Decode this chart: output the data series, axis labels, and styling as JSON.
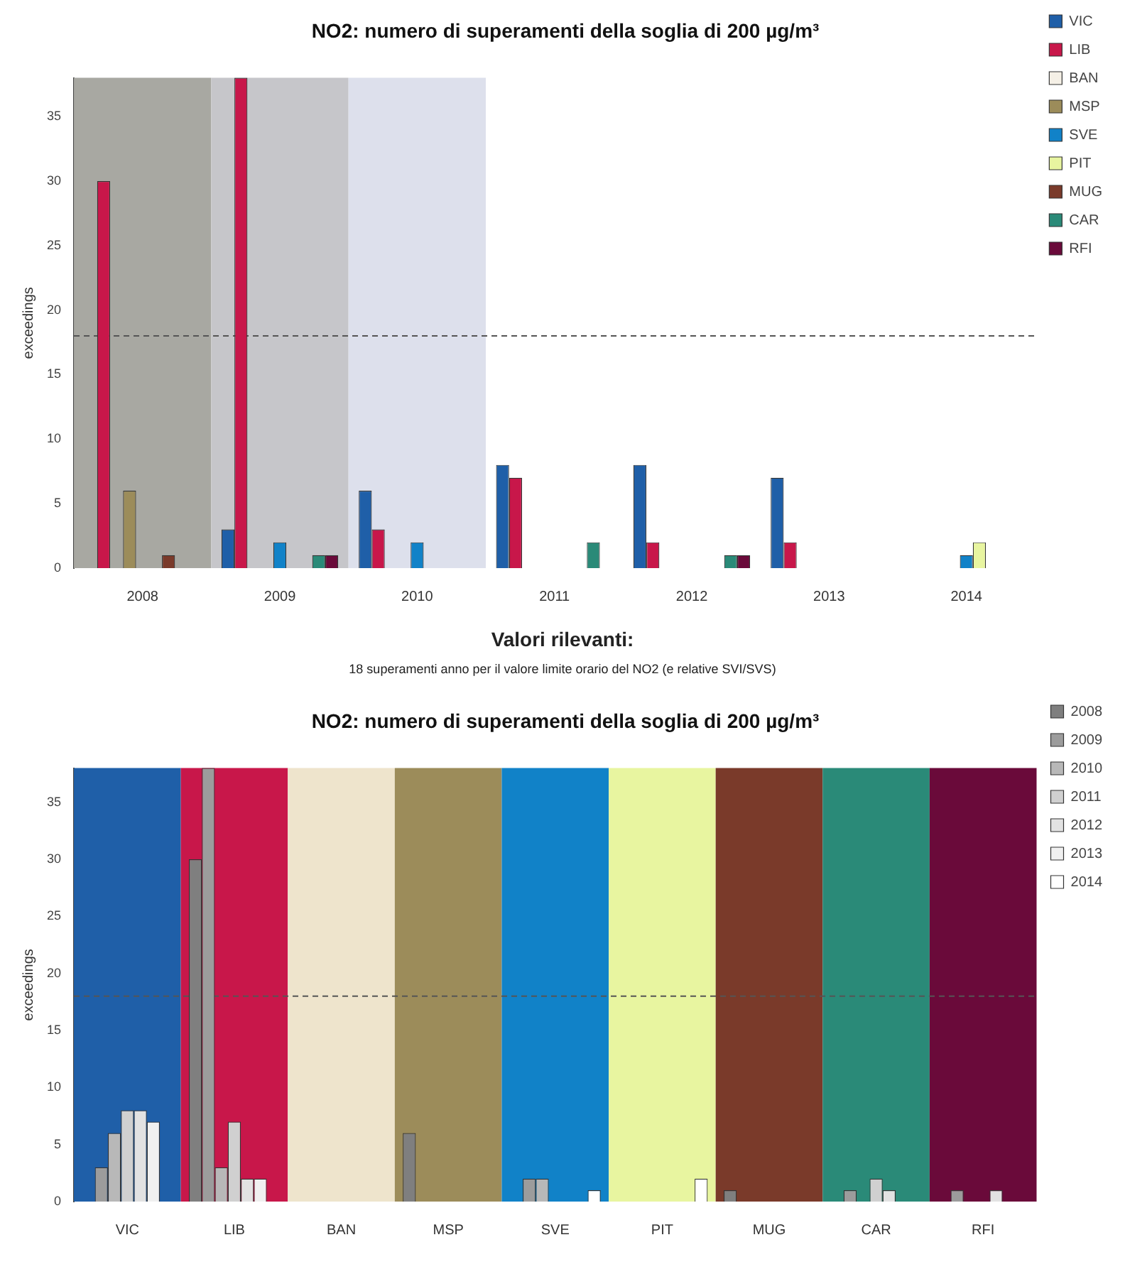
{
  "chart_data": [
    {
      "type": "bar",
      "title": "NO2: numero di superamenti della soglia di 200 µg/m³",
      "ylabel": "exceedings",
      "categories": [
        "2008",
        "2009",
        "2010",
        "2011",
        "2012",
        "2013",
        "2014"
      ],
      "series": [
        {
          "name": "VIC",
          "color": "#1f5fa8",
          "values": [
            0,
            3,
            6,
            8,
            8,
            7,
            null
          ]
        },
        {
          "name": "LIB",
          "color": "#c8174a",
          "values": [
            30,
            38,
            3,
            7,
            2,
            2,
            null
          ]
        },
        {
          "name": "BAN",
          "color": "#f5f0e6",
          "values": [
            0,
            0,
            0,
            0,
            0,
            0,
            0
          ]
        },
        {
          "name": "MSP",
          "color": "#9c8c5a",
          "values": [
            6,
            0,
            0,
            0,
            0,
            0,
            0
          ]
        },
        {
          "name": "SVE",
          "color": "#1182c8",
          "values": [
            0,
            2,
            2,
            0,
            0,
            0,
            1
          ]
        },
        {
          "name": "PIT",
          "color": "#e8f5a0",
          "values": [
            0,
            0,
            0,
            0,
            0,
            0,
            2
          ]
        },
        {
          "name": "MUG",
          "color": "#7a3a2a",
          "values": [
            1,
            0,
            0,
            0,
            0,
            0,
            0
          ]
        },
        {
          "name": "CAR",
          "color": "#2a8a78",
          "values": [
            0,
            1,
            0,
            2,
            1,
            0,
            0
          ]
        },
        {
          "name": "RFI",
          "color": "#6a0a3a",
          "values": [
            0,
            1,
            0,
            0,
            1,
            0,
            0
          ]
        }
      ],
      "ylim": [
        0,
        38
      ],
      "yticks": [
        0,
        5,
        10,
        15,
        20,
        25,
        30,
        35
      ],
      "legend": "top right",
      "ref_lines": [
        {
          "axis": "y",
          "value": 18,
          "color": "#555555",
          "line_style": "dashed"
        }
      ],
      "bands": [
        {
          "axis": "x",
          "from": "2008",
          "to": "2008",
          "color": "#a8a8a2"
        },
        {
          "axis": "x",
          "from": "2009",
          "to": "2009",
          "color": "#c6c6ca"
        },
        {
          "axis": "x",
          "from": "2010",
          "to": "2010",
          "color": "#dde0ec"
        }
      ],
      "annotations": [
        "Valori rilevanti:",
        "18 superamenti anno per il valore limite orario del NO2 (e relative SVI/SVS)"
      ]
    },
    {
      "type": "bar",
      "title": "NO2: numero di superamenti della soglia di 200 µg/m³",
      "ylabel": "exceedings",
      "categories": [
        "VIC",
        "LIB",
        "BAN",
        "MSP",
        "SVE",
        "PIT",
        "MUG",
        "CAR",
        "RFI"
      ],
      "series": [
        {
          "name": "2008",
          "color": "#7f7f7f",
          "values": [
            0,
            30,
            0,
            6,
            0,
            0,
            1,
            0,
            0
          ]
        },
        {
          "name": "2009",
          "color": "#9c9c9c",
          "values": [
            3,
            38,
            0,
            0,
            2,
            0,
            0,
            1,
            1
          ]
        },
        {
          "name": "2010",
          "color": "#b8b8b8",
          "values": [
            6,
            3,
            0,
            0,
            2,
            0,
            0,
            0,
            0
          ]
        },
        {
          "name": "2011",
          "color": "#d0d0d0",
          "values": [
            8,
            7,
            0,
            0,
            0,
            0,
            0,
            2,
            0
          ]
        },
        {
          "name": "2012",
          "color": "#e2e2e2",
          "values": [
            8,
            2,
            0,
            0,
            0,
            0,
            0,
            1,
            1
          ]
        },
        {
          "name": "2013",
          "color": "#f0f0f0",
          "values": [
            7,
            2,
            0,
            0,
            0,
            0,
            0,
            0,
            0
          ]
        },
        {
          "name": "2014",
          "color": "#ffffff",
          "values": [
            null,
            null,
            0,
            0,
            1,
            2,
            0,
            0,
            0
          ]
        }
      ],
      "ylim": [
        0,
        38
      ],
      "yticks": [
        0,
        5,
        10,
        15,
        20,
        25,
        30,
        35
      ],
      "legend": "top right",
      "ref_lines": [
        {
          "axis": "y",
          "value": 18,
          "color": "#555555",
          "line_style": "dashed"
        }
      ],
      "bands": [
        {
          "axis": "x",
          "from": "VIC",
          "to": "VIC",
          "color": "#1f5fa8"
        },
        {
          "axis": "x",
          "from": "LIB",
          "to": "LIB",
          "color": "#c8174a"
        },
        {
          "axis": "x",
          "from": "BAN",
          "to": "BAN",
          "color": "#eee4cc"
        },
        {
          "axis": "x",
          "from": "MSP",
          "to": "MSP",
          "color": "#9c8c5a"
        },
        {
          "axis": "x",
          "from": "SVE",
          "to": "SVE",
          "color": "#1182c8"
        },
        {
          "axis": "x",
          "from": "PIT",
          "to": "PIT",
          "color": "#e8f5a0"
        },
        {
          "axis": "x",
          "from": "MUG",
          "to": "MUG",
          "color": "#7a3a2a"
        },
        {
          "axis": "x",
          "from": "CAR",
          "to": "CAR",
          "color": "#2a8a78"
        },
        {
          "axis": "x",
          "from": "RFI",
          "to": "RFI",
          "color": "#6a0a3a"
        }
      ]
    }
  ]
}
